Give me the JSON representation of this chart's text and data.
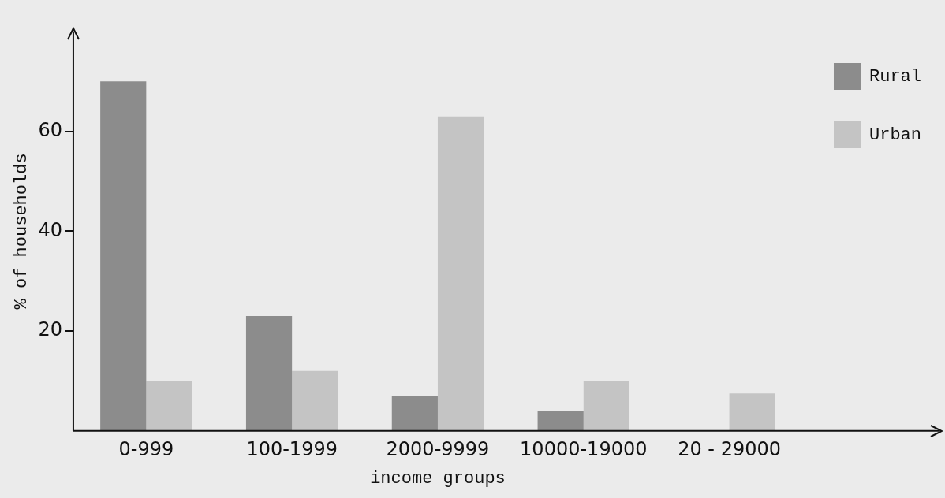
{
  "chart_data": {
    "type": "bar",
    "categories": [
      "0-999",
      "100-1999",
      "2000-9999",
      "10000-19000",
      "20 - 29000"
    ],
    "series": [
      {
        "name": "Rural",
        "color": "#8c8c8c",
        "values": [
          70,
          23,
          7,
          4,
          0
        ]
      },
      {
        "name": "Urban",
        "color": "#c4c4c4",
        "values": [
          10,
          12,
          63,
          10,
          7.5
        ]
      }
    ],
    "xlabel": "income groups",
    "ylabel": "% of households",
    "ylim": [
      0,
      80
    ],
    "yticks": [
      20,
      40,
      60
    ],
    "grid": false,
    "legend": "top right"
  }
}
